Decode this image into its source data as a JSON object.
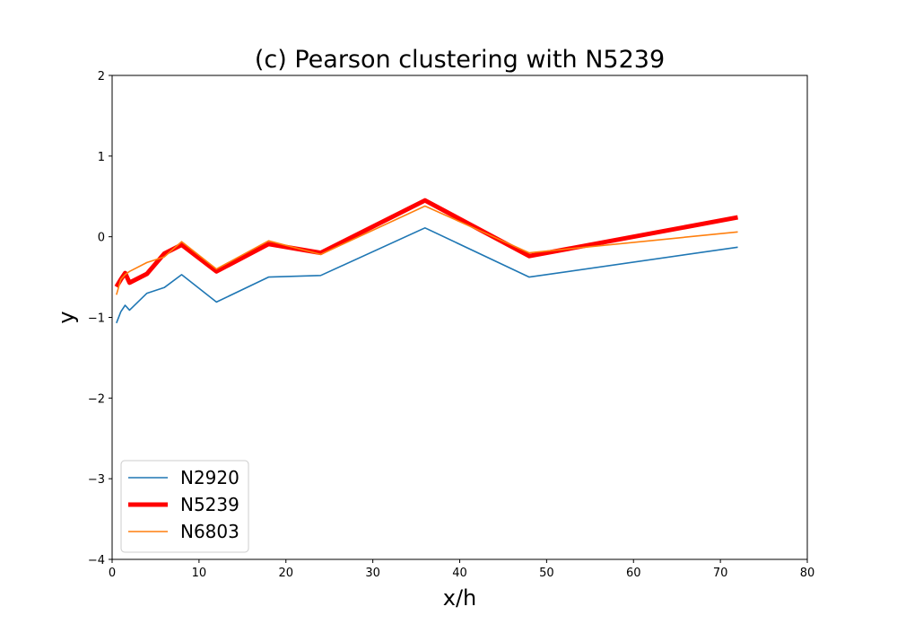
{
  "chart_data": {
    "type": "line",
    "title": "(c) Pearson clustering with N5239",
    "xlabel": "x/h",
    "ylabel": "y",
    "xlim": [
      0,
      80
    ],
    "ylim": [
      -4,
      2
    ],
    "xticks": [
      0,
      10,
      20,
      30,
      40,
      50,
      60,
      70,
      80
    ],
    "yticks": [
      -4,
      -3,
      -2,
      -1,
      0,
      1,
      2
    ],
    "xtick_labels": [
      "0",
      "10",
      "20",
      "30",
      "40",
      "50",
      "60",
      "70",
      "80"
    ],
    "ytick_labels": [
      "−4",
      "−3",
      "−2",
      "−1",
      "0",
      "1",
      "2"
    ],
    "grid": false,
    "legend_position": "lower-left",
    "series": [
      {
        "name": "N2920",
        "color": "#1f77b4",
        "line_weight": "normal",
        "x": [
          0.5,
          1,
          1.5,
          2,
          4,
          6,
          8,
          12,
          18,
          24,
          36,
          48,
          72
        ],
        "y": [
          -1.07,
          -0.93,
          -0.85,
          -0.91,
          -0.7,
          -0.63,
          -0.47,
          -0.81,
          -0.5,
          -0.48,
          0.11,
          -0.5,
          -0.13
        ]
      },
      {
        "name": "N5239",
        "color": "#ff0000",
        "line_weight": "bold",
        "x": [
          0.5,
          1,
          1.5,
          2,
          4,
          6,
          8,
          12,
          18,
          24,
          36,
          48,
          72
        ],
        "y": [
          -0.62,
          -0.53,
          -0.45,
          -0.57,
          -0.46,
          -0.21,
          -0.1,
          -0.43,
          -0.09,
          -0.2,
          0.45,
          -0.24,
          0.24
        ]
      },
      {
        "name": "N6803",
        "color": "#ff7f0e",
        "line_weight": "normal",
        "x": [
          0.5,
          1,
          1.5,
          2,
          4,
          6,
          8,
          12,
          18,
          24,
          36,
          48,
          72
        ],
        "y": [
          -0.72,
          -0.53,
          -0.47,
          -0.43,
          -0.32,
          -0.25,
          -0.06,
          -0.4,
          -0.05,
          -0.22,
          0.38,
          -0.2,
          0.06
        ]
      }
    ]
  }
}
